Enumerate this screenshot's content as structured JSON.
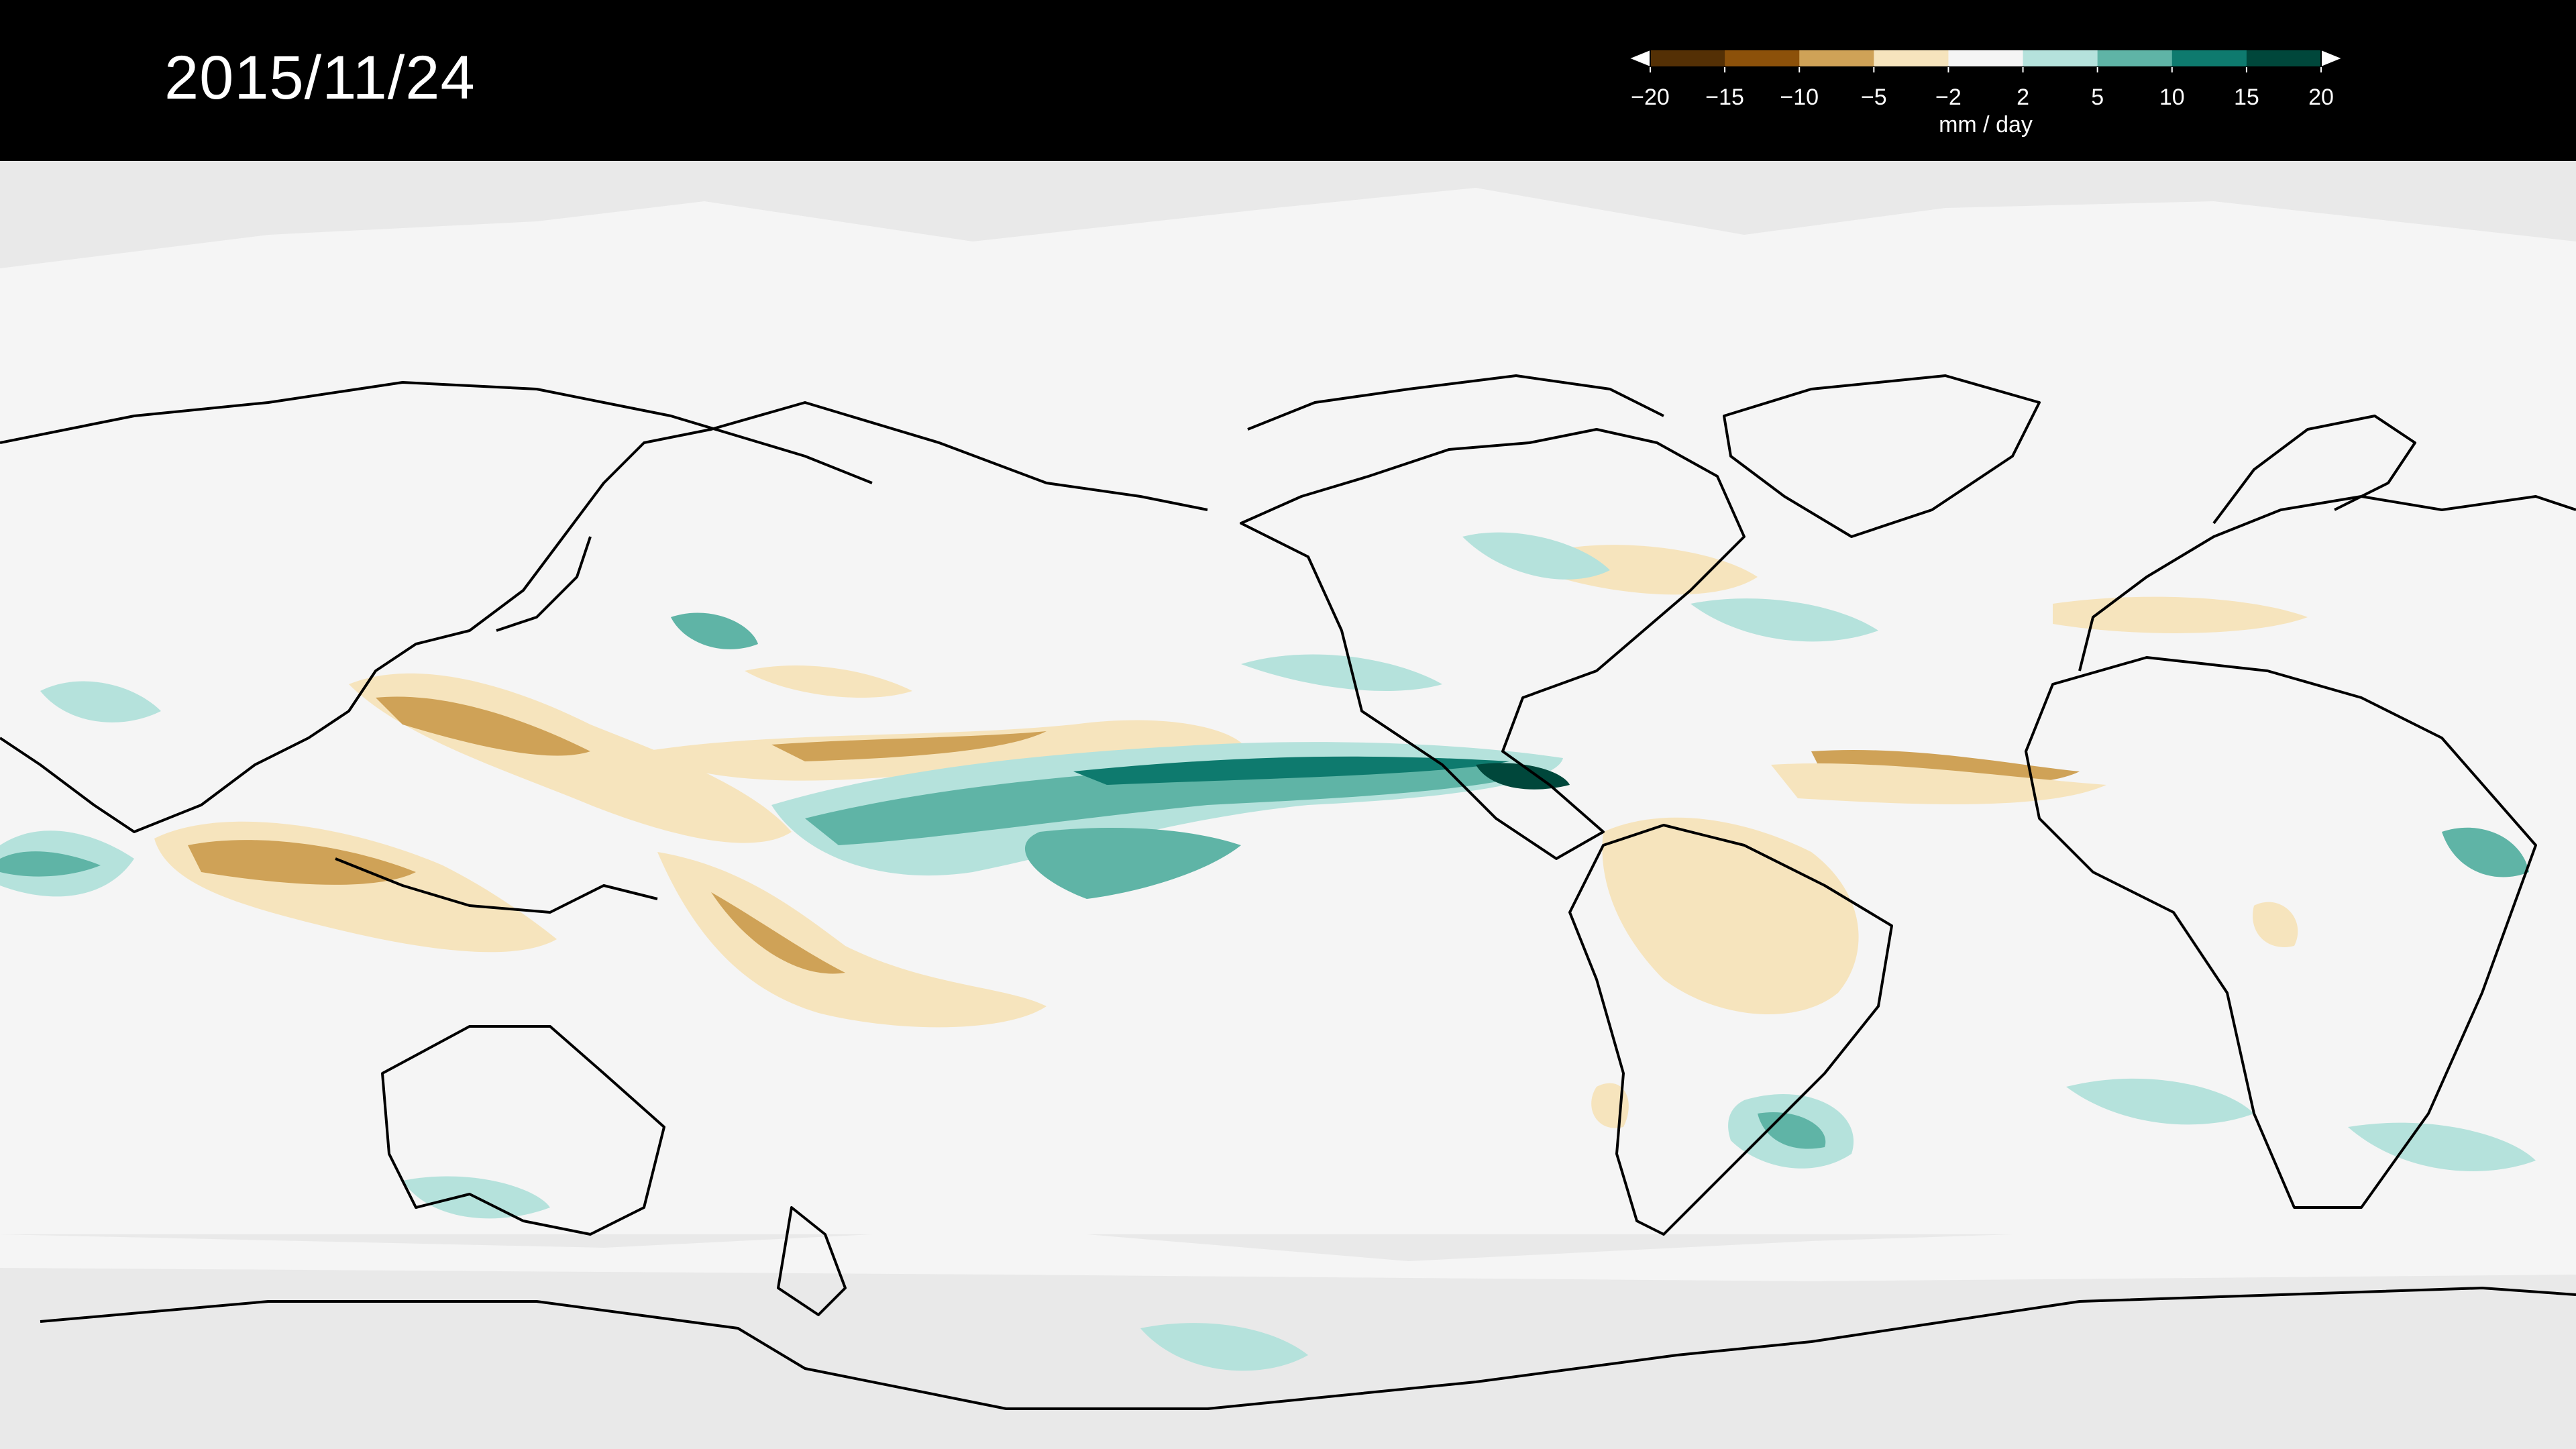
{
  "date": "2015/11/24",
  "legend": {
    "unit": "mm / day",
    "ticks": [
      "−20",
      "−15",
      "−10",
      "−5",
      "−2",
      "2",
      "5",
      "10",
      "15",
      "20"
    ],
    "bins": [
      {
        "from": -20,
        "to": -15,
        "color": "#543005"
      },
      {
        "from": -15,
        "to": -10,
        "color": "#8c510a"
      },
      {
        "from": -10,
        "to": -5,
        "color": "#cfa257"
      },
      {
        "from": -5,
        "to": -2,
        "color": "#f6e4bd"
      },
      {
        "from": -2,
        "to": 2,
        "color": "#f5f5f5"
      },
      {
        "from": 2,
        "to": 5,
        "color": "#b5e2dc"
      },
      {
        "from": 5,
        "to": 10,
        "color": "#5fb4a6"
      },
      {
        "from": 10,
        "to": 15,
        "color": "#0e7a6e"
      },
      {
        "from": 15,
        "to": 20,
        "color": "#00473b"
      }
    ],
    "under_color": "#ffffff",
    "over_color": "#ffffff"
  },
  "colors": {
    "background": "#000000",
    "polar_mask": "#e9e9e9",
    "neutral": "#f5f5f5",
    "coastline": "#000000"
  }
}
